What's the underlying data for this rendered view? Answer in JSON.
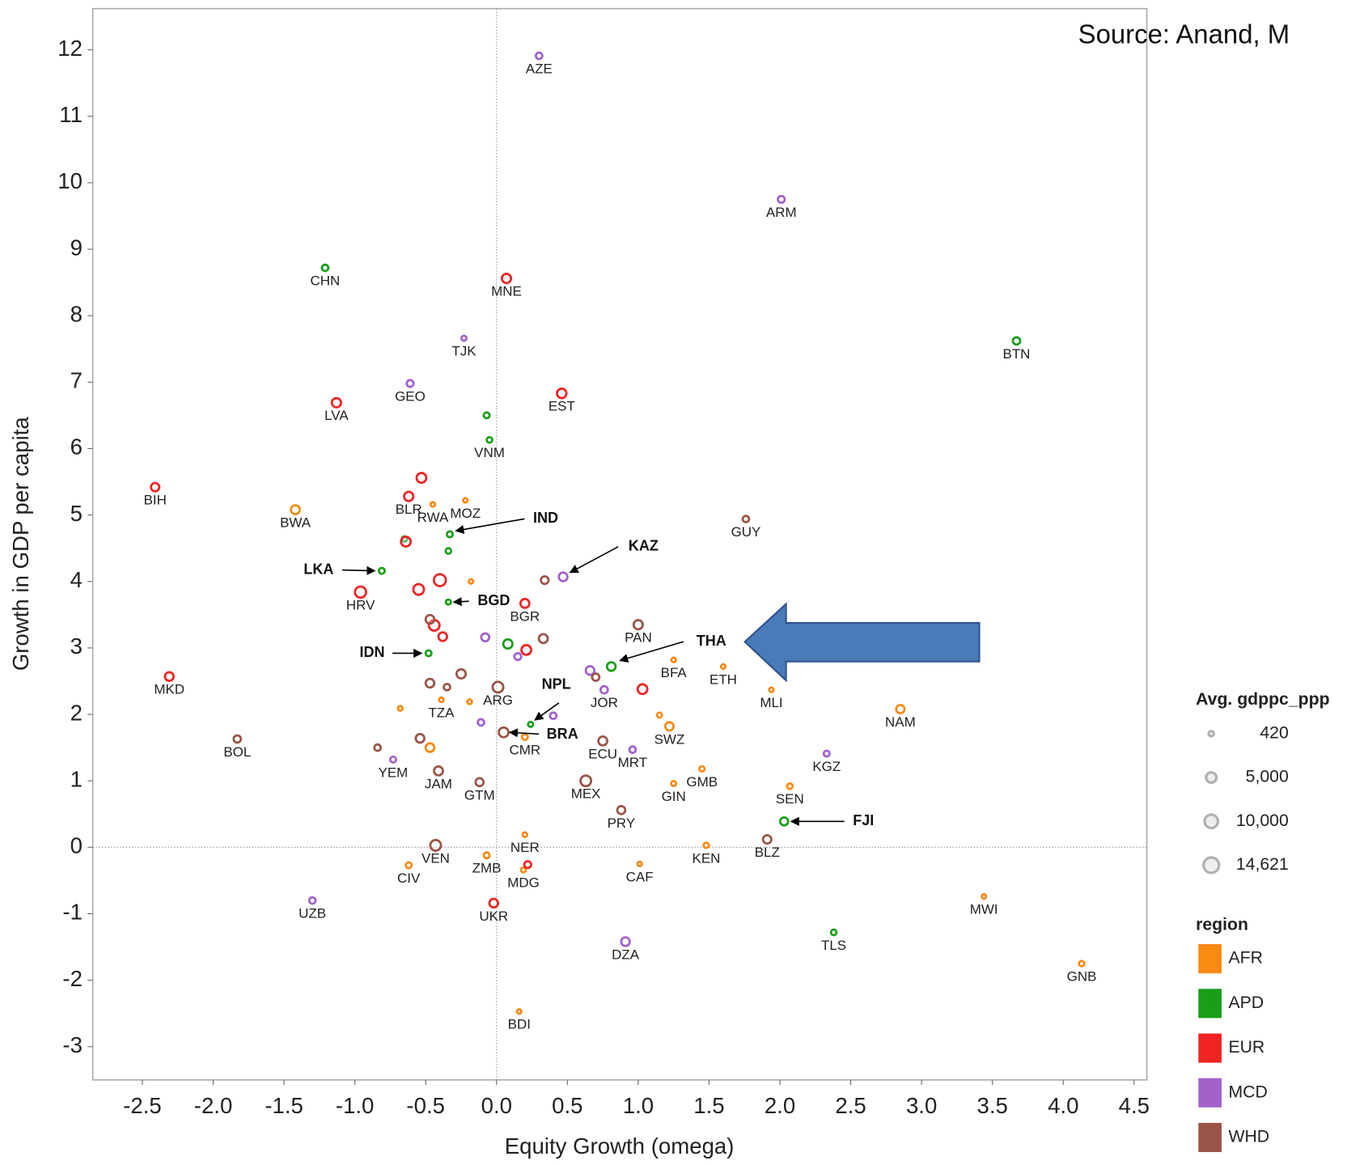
{
  "chart_data": {
    "type": "scatter",
    "source": "Source: Anand, M",
    "x_label": "Equity Growth (omega)",
    "y_label": "Growth in GDP per capita",
    "xlim": [
      -2.85,
      4.59
    ],
    "ylim": [
      -3.5,
      12.62
    ],
    "xticks": [
      -2.5,
      {
        "value": -2,
        "label": "-2.0"
      },
      -1.5,
      {
        "value": -1,
        "label": "-1.0"
      },
      -0.5,
      {
        "value": 0,
        "label": "0.0"
      },
      0.5,
      {
        "value": 1,
        "label": "1.0"
      },
      1.5,
      {
        "value": 2,
        "label": "2.0"
      },
      2.5,
      {
        "value": 3,
        "label": "3.0"
      },
      3.5,
      {
        "value": 4,
        "label": "4.0"
      },
      4.5
    ],
    "yticks": [
      -3,
      -2,
      -1,
      0,
      1,
      2,
      3,
      4,
      5,
      6,
      7,
      8,
      9,
      10,
      11,
      12
    ],
    "size_legend": {
      "title": "Avg. gdppc_ppp",
      "values": [
        420,
        5000,
        10000,
        14621
      ],
      "value_labels": [
        "420",
        "5,000",
        "10,000",
        "14,621"
      ]
    },
    "legend_title": "region",
    "series": [
      {
        "name": "AFR",
        "color": "#f98a12",
        "labels": [
          "RWA",
          "MOZ",
          "BWA",
          null,
          "BFA",
          "ETH",
          "MLI",
          "NAM",
          "TZA",
          null,
          null,
          null,
          "SWZ",
          "CMR",
          null,
          "GMB",
          "GIN",
          "SEN",
          "NER",
          "KEN",
          "ZMB",
          "CAF",
          "CIV",
          "MDG",
          "MWI",
          "GNB",
          "BDI"
        ],
        "x": [
          -0.45,
          -0.22,
          -1.42,
          -0.18,
          1.25,
          1.6,
          1.94,
          2.85,
          -0.39,
          -0.19,
          -0.68,
          1.15,
          1.22,
          0.2,
          -0.47,
          1.45,
          1.25,
          2.07,
          0.2,
          1.48,
          -0.07,
          1.01,
          -0.62,
          0.19,
          3.44,
          4.13,
          0.16
        ],
        "values": [
          5.16,
          5.22,
          5.08,
          4.0,
          2.82,
          2.72,
          2.37,
          2.08,
          2.22,
          2.19,
          2.09,
          1.99,
          1.82,
          1.66,
          1.5,
          1.18,
          0.96,
          0.92,
          0.19,
          0.03,
          -0.12,
          -0.25,
          -0.27,
          -0.34,
          -0.74,
          -1.75,
          -2.47
        ],
        "sizes": [
          500,
          500,
          5500,
          500,
          500,
          450,
          500,
          4500,
          500,
          600,
          600,
          800,
          4500,
          1500,
          5000,
          1000,
          800,
          1200,
          500,
          1000,
          1500,
          500,
          1500,
          700,
          450,
          1000,
          420
        ]
      },
      {
        "name": "APD",
        "color": "#1a9e1a",
        "labels": [
          "CHN",
          "BTN",
          null,
          "VNM",
          "IND",
          null,
          null,
          "LKA",
          "BGD",
          null,
          "IDN",
          "THA",
          "NPL",
          "FJI",
          "TLS"
        ],
        "x": [
          -1.21,
          3.67,
          -0.07,
          -0.05,
          -0.33,
          -0.65,
          -0.34,
          -0.81,
          -0.34,
          0.08,
          -0.48,
          0.81,
          0.24,
          2.03,
          2.38
        ],
        "values": [
          8.72,
          7.62,
          6.5,
          6.13,
          4.71,
          4.64,
          4.46,
          4.16,
          3.69,
          3.06,
          2.92,
          2.72,
          1.85,
          0.39,
          -1.28
        ],
        "sizes": [
          2000,
          3000,
          1500,
          1200,
          1500,
          1000,
          1200,
          1500,
          800,
          6000,
          1500,
          5000,
          800,
          4000,
          1200
        ]
      },
      {
        "name": "EUR",
        "color": "#f02424",
        "labels": [
          "MNE",
          "EST",
          "LVA",
          "BIH",
          null,
          "BLR",
          null,
          null,
          null,
          "HRV",
          "BGR",
          null,
          null,
          null,
          "MKD",
          null,
          null,
          "UKR"
        ],
        "x": [
          0.07,
          0.46,
          -1.13,
          -2.41,
          -0.53,
          -0.62,
          -0.64,
          -0.4,
          -0.55,
          -0.96,
          0.2,
          -0.44,
          -0.38,
          0.21,
          -2.31,
          1.03,
          0.22,
          -0.02
        ],
        "values": [
          8.56,
          6.83,
          6.69,
          5.42,
          5.56,
          5.28,
          4.6,
          4.02,
          3.88,
          3.84,
          3.67,
          3.34,
          3.17,
          2.97,
          2.57,
          2.38,
          -0.26,
          -0.84
        ],
        "sizes": [
          6000,
          6500,
          6000,
          4500,
          7000,
          6000,
          7000,
          12000,
          9000,
          10000,
          5500,
          9000,
          5000,
          7000,
          5000,
          7000,
          2500,
          5000
        ]
      },
      {
        "name": "MCD",
        "color": "#a262c9",
        "labels": [
          "AZE",
          "ARM",
          "TJK",
          "GEO",
          "KAZ",
          null,
          null,
          null,
          "JOR",
          null,
          null,
          "MRT",
          "KGZ",
          "YEM",
          "UZB",
          "DZA"
        ],
        "x": [
          0.3,
          2.01,
          -0.23,
          -0.61,
          0.47,
          -0.08,
          0.15,
          0.66,
          0.76,
          0.4,
          -0.11,
          0.96,
          2.33,
          -0.73,
          -1.3,
          0.91
        ],
        "values": [
          11.91,
          9.75,
          7.66,
          6.98,
          4.07,
          3.16,
          2.87,
          2.66,
          2.37,
          1.98,
          1.88,
          1.47,
          1.41,
          1.32,
          -0.8,
          -1.42
        ],
        "sizes": [
          2000,
          2500,
          800,
          2500,
          5000,
          4000,
          2500,
          5000,
          3000,
          2000,
          2000,
          2000,
          1500,
          1500,
          2000,
          5000
        ]
      },
      {
        "name": "WHD",
        "color": "#9a5548",
        "labels": [
          "GUY",
          null,
          "PAN",
          null,
          null,
          null,
          null,
          null,
          null,
          "ARG",
          "BRA",
          "BOL",
          "ECU",
          null,
          null,
          "JAM",
          "GTM",
          "MEX",
          "PRY",
          "VEN",
          "BLZ"
        ],
        "x": [
          1.76,
          0.34,
          1.0,
          -0.47,
          0.33,
          0.7,
          -0.25,
          -0.47,
          -0.35,
          0.01,
          0.05,
          -1.83,
          0.75,
          -0.54,
          -0.84,
          -0.41,
          -0.12,
          0.63,
          0.88,
          -0.43,
          1.91
        ],
        "values": [
          4.94,
          4.02,
          3.35,
          3.43,
          3.14,
          2.56,
          2.61,
          2.47,
          2.41,
          2.41,
          1.73,
          1.63,
          1.6,
          1.64,
          1.5,
          1.15,
          0.98,
          1.0,
          0.56,
          0.03,
          0.12
        ],
        "sizes": [
          2000,
          3500,
          6000,
          5000,
          5500,
          3000,
          6000,
          5000,
          2000,
          9000,
          7000,
          3000,
          5500,
          5000,
          2000,
          5500,
          4000,
          9000,
          4000,
          9000,
          4500
        ]
      }
    ]
  }
}
